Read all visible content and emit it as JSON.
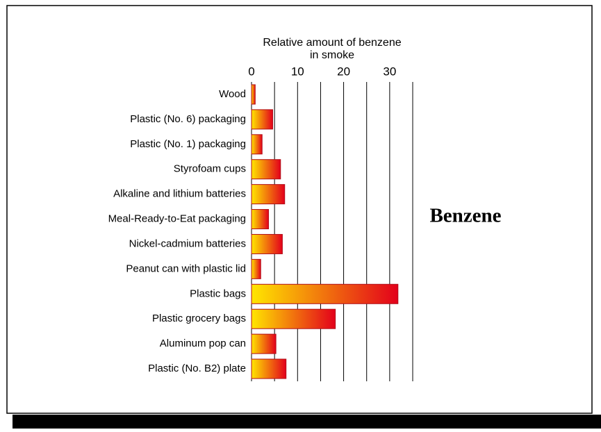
{
  "chart_data": {
    "type": "bar",
    "orientation": "horizontal",
    "xlabel": [
      "Relative amount of benzene",
      "in smoke"
    ],
    "annotation": "Benzene",
    "categories": [
      "Wood",
      "Plastic (No. 6) packaging",
      "Plastic (No. 1) packaging",
      "Styrofoam cups",
      "Alkaline and lithium batteries",
      "Meal-Ready-to-Eat packaging",
      "Nickel-cadmium batteries",
      "Peanut can with plastic lid",
      "Plastic bags",
      "Plastic grocery bags",
      "Aluminum pop can",
      "Plastic (No. B2) plate"
    ],
    "values": [
      0.8,
      4.6,
      2.3,
      6.3,
      7.2,
      3.7,
      6.7,
      2.0,
      31.8,
      18.2,
      5.3,
      7.5
    ],
    "xlim": [
      0,
      35
    ],
    "xticks": [
      0,
      10,
      20,
      30
    ],
    "minor_xticks": [
      5,
      15,
      25,
      35
    ],
    "grid": true,
    "gradient": [
      "#ffe600",
      "#e3001b"
    ],
    "edge_color": "#b0101a"
  }
}
